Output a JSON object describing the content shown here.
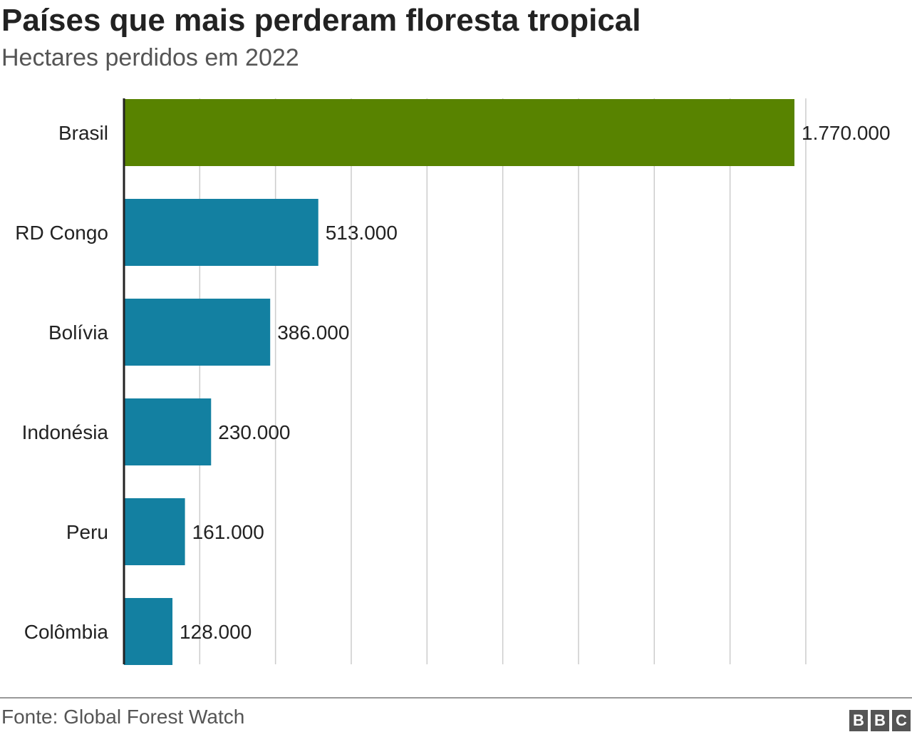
{
  "header": {
    "title": "Países que mais perderam floresta tropical",
    "subtitle": "Hectares perdidos em 2022"
  },
  "footer": {
    "source": "Fonte: Global Forest Watch",
    "logo_letters": [
      "B",
      "B",
      "C"
    ]
  },
  "colors": {
    "highlight": "#588300",
    "bar": "#1380A1",
    "grid": "#cccccc",
    "axis": "#222222"
  },
  "chart_data": {
    "type": "bar",
    "orientation": "horizontal",
    "categories": [
      "Brasil",
      "RD Congo",
      "Bolívia",
      "Indonésia",
      "Peru",
      "Colômbia"
    ],
    "values": [
      1770000,
      513000,
      386000,
      230000,
      161000,
      128000
    ],
    "value_labels": [
      "1.770.000",
      "513.000",
      "386.000",
      "230.000",
      "161.000",
      "128.000"
    ],
    "highlight_index": 0,
    "xlim": [
      0,
      1800000
    ],
    "grid": true,
    "grid_step": 200000,
    "xlabel": "",
    "ylabel": ""
  }
}
